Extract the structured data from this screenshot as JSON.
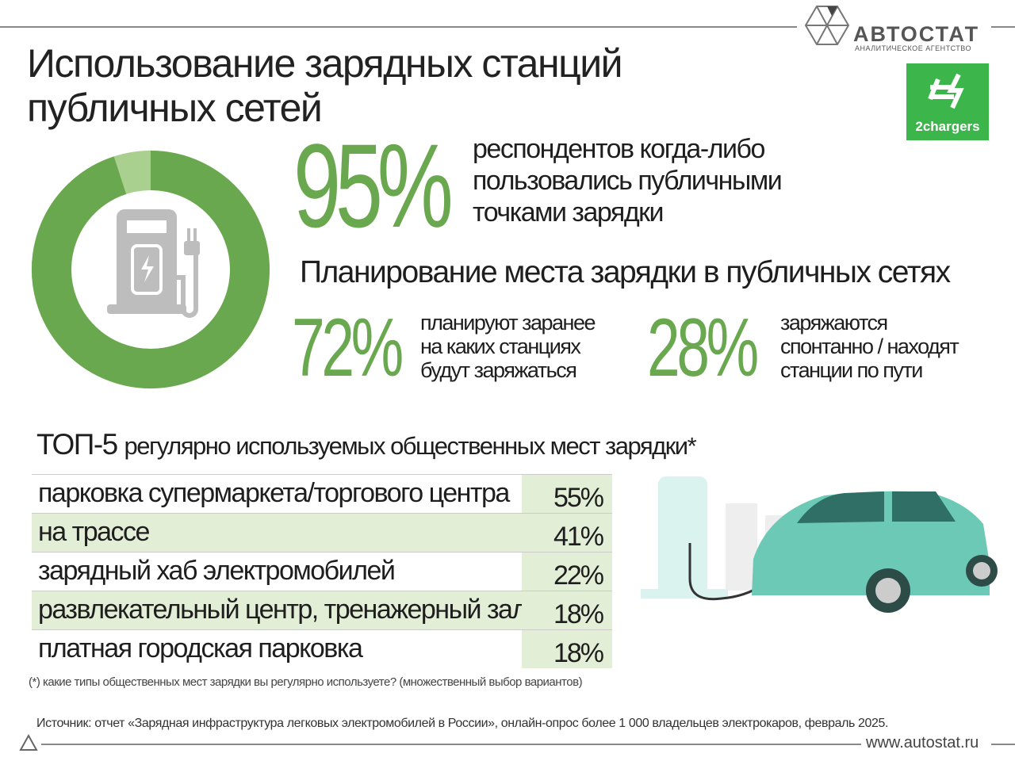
{
  "header": {
    "title_lines": [
      "Использование зарядных станций",
      "публичных сетей"
    ],
    "logo_name": "АВТОСТАТ",
    "logo_sub": "АНАЛИТИЧЕСКОЕ АГЕНТСТВО",
    "partner": "2chargers"
  },
  "chart_data": {
    "type": "donut",
    "values": [
      95
    ],
    "value_labels": [
      "95%"
    ],
    "color": "#6aa84f",
    "rest_color": "#a9d08e",
    "annotation_lines": [
      "респондентов когда-либо",
      "пользовались публичными",
      "точками зарядки"
    ]
  },
  "planning": {
    "title": "Планирование места зарядки в публичных сетях",
    "items": [
      {
        "value": "72%",
        "lines": [
          "планируют заранее",
          "на каких станциях",
          "будут заряжаться"
        ]
      },
      {
        "value": "28%",
        "lines": [
          "заряжаются",
          "спонтанно / находят",
          "станции по пути"
        ]
      }
    ]
  },
  "table": {
    "title_prefix": "ТОП-5",
    "title_rest": "регулярно используемых общественных мест зарядки*",
    "rows": [
      [
        "парковка супермаркета/торгового центра",
        "55%"
      ],
      [
        "на трассе",
        "41%"
      ],
      [
        "зарядный хаб электромобилей",
        "22%"
      ],
      [
        "развлекательный центр, тренажерный зал",
        "18%"
      ],
      [
        "платная городская парковка",
        "18%"
      ]
    ],
    "footnote": "(*) какие типы общественных мест зарядки вы регулярно используете? (множественный выбор вариантов)"
  },
  "footer": {
    "source": "Источник: отчет «Зарядная инфраструктура легковых электромобилей в России», онлайн-опрос более 1 000 владельцев электрокаров, февраль 2025.",
    "url": "www.autostat.ru"
  }
}
